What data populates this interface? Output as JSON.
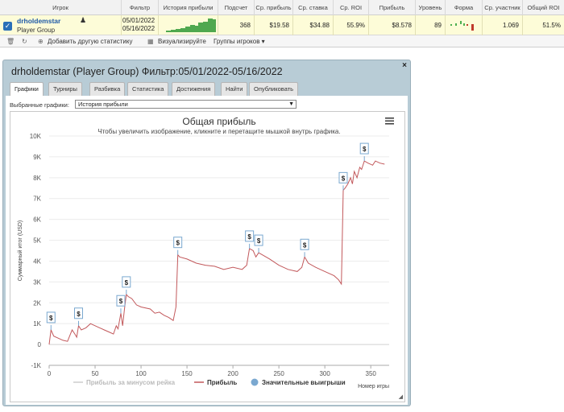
{
  "table": {
    "headers": [
      "Игрок",
      "Фильтр",
      "История прибыли",
      "Подсчет",
      "Ср. прибыль",
      "Ср. ставка",
      "Ср. ROI",
      "Прибыль",
      "Уровень",
      "Форма",
      "Ср. участник",
      "Общий ROI"
    ],
    "row": {
      "player": "drholdemstar",
      "group": "Player Group",
      "filter_from": "05/01/2022",
      "filter_to": "05/16/2022",
      "count": "368",
      "avg_profit": "$19.58",
      "avg_stake": "$34.88",
      "avg_roi": "55.9%",
      "profit": "$8.578",
      "level": "89",
      "avg_participants": "1.069",
      "total_roi": "51.5%"
    }
  },
  "toolbar": {
    "add_stat": "Добавить другую статистику",
    "visualize": "Визуализируйте",
    "player_groups": "Группы игроков ▾"
  },
  "panel": {
    "title": "drholdemstar (Player Group) Фильтр:05/01/2022-05/16/2022",
    "close": "×",
    "tabs": [
      "Графики",
      "Турниры",
      "Разбивка",
      "Статистика",
      "Достижения",
      "Найти",
      "Опубликовать"
    ],
    "select_label": "Выбранные графики:",
    "select_value": "История прибыли"
  },
  "chart_data": {
    "type": "line",
    "title": "Общая прибыль",
    "subtitle": "Чтобы увеличить изображение, кликните и перетащите мышкой внутрь графика.",
    "ylabel": "Суммарный итог (USD)",
    "xlabel": "Номер игры",
    "xlim": [
      0,
      370
    ],
    "ylim": [
      -1000,
      10000
    ],
    "x_ticks": [
      "0",
      "50",
      "100",
      "150",
      "200",
      "250",
      "300",
      "350"
    ],
    "y_ticks": [
      "-1K",
      "0",
      "1K",
      "2K",
      "3K",
      "4K",
      "5K",
      "6K",
      "7K",
      "8K",
      "9K",
      "10K"
    ],
    "legend": [
      "Прибыль за минусом рейка",
      "Прибыль",
      "Значительные выигрыши"
    ],
    "legend_position": "bottom",
    "grid": true,
    "series": [
      {
        "name": "Прибыль",
        "color": "#c2585b",
        "points": [
          [
            0,
            0
          ],
          [
            2,
            700
          ],
          [
            5,
            400
          ],
          [
            10,
            300
          ],
          [
            15,
            200
          ],
          [
            20,
            150
          ],
          [
            25,
            700
          ],
          [
            28,
            500
          ],
          [
            30,
            350
          ],
          [
            32,
            900
          ],
          [
            35,
            700
          ],
          [
            40,
            800
          ],
          [
            45,
            1000
          ],
          [
            50,
            900
          ],
          [
            55,
            800
          ],
          [
            60,
            700
          ],
          [
            65,
            600
          ],
          [
            70,
            500
          ],
          [
            73,
            900
          ],
          [
            75,
            750
          ],
          [
            78,
            1500
          ],
          [
            80,
            900
          ],
          [
            82,
            1700
          ],
          [
            84,
            2400
          ],
          [
            86,
            2300
          ],
          [
            90,
            2200
          ],
          [
            95,
            1900
          ],
          [
            100,
            1800
          ],
          [
            110,
            1700
          ],
          [
            115,
            1500
          ],
          [
            120,
            1550
          ],
          [
            125,
            1400
          ],
          [
            130,
            1300
          ],
          [
            135,
            1150
          ],
          [
            138,
            1800
          ],
          [
            140,
            4300
          ],
          [
            142,
            4200
          ],
          [
            150,
            4100
          ],
          [
            160,
            3900
          ],
          [
            170,
            3800
          ],
          [
            180,
            3750
          ],
          [
            190,
            3600
          ],
          [
            200,
            3700
          ],
          [
            210,
            3600
          ],
          [
            215,
            3800
          ],
          [
            218,
            4600
          ],
          [
            222,
            4500
          ],
          [
            225,
            4200
          ],
          [
            228,
            4400
          ],
          [
            232,
            4300
          ],
          [
            240,
            4100
          ],
          [
            250,
            3800
          ],
          [
            260,
            3600
          ],
          [
            270,
            3500
          ],
          [
            275,
            3700
          ],
          [
            278,
            4200
          ],
          [
            282,
            3900
          ],
          [
            290,
            3700
          ],
          [
            300,
            3500
          ],
          [
            310,
            3300
          ],
          [
            315,
            3100
          ],
          [
            318,
            2900
          ],
          [
            320,
            7400
          ],
          [
            322,
            7500
          ],
          [
            325,
            7700
          ],
          [
            328,
            8000
          ],
          [
            330,
            7700
          ],
          [
            332,
            8300
          ],
          [
            335,
            8000
          ],
          [
            338,
            8500
          ],
          [
            340,
            8400
          ],
          [
            343,
            8800
          ],
          [
            347,
            8700
          ],
          [
            352,
            8600
          ],
          [
            355,
            8800
          ],
          [
            360,
            8700
          ],
          [
            365,
            8650
          ]
        ]
      }
    ],
    "big_wins_x": [
      2,
      32,
      78,
      84,
      140,
      218,
      228,
      278,
      320,
      343
    ]
  }
}
